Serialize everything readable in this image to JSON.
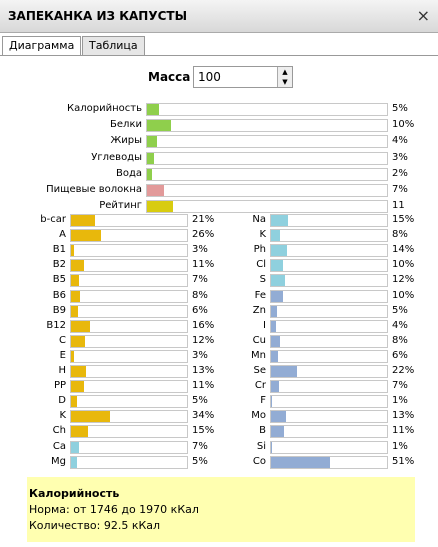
{
  "header": {
    "title": "ЗАПЕКАНКА ИЗ КАПУСТЫ",
    "close": "×"
  },
  "tabs": [
    "Диаграмма",
    "Таблица"
  ],
  "mass": {
    "label": "Масса",
    "value": 100
  },
  "main": [
    {
      "label": "Калорийность",
      "value": 5,
      "value_label": "5%",
      "color": "#8fcf4c"
    },
    {
      "label": "Белки",
      "value": 10,
      "value_label": "10%",
      "color": "#8fcf4c"
    },
    {
      "label": "Жиры",
      "value": 4,
      "value_label": "4%",
      "color": "#8fcf4c"
    },
    {
      "label": "Углеводы",
      "value": 3,
      "value_label": "3%",
      "color": "#8fcf4c"
    },
    {
      "label": "Вода",
      "value": 2,
      "value_label": "2%",
      "color": "#8fcf4c"
    },
    {
      "label": "Пищевые волокна",
      "value": 7,
      "value_label": "7%",
      "color": "#e29a9a"
    },
    {
      "label": "Рейтинг",
      "value": 11,
      "color": "#d8cc10"
    }
  ],
  "vitamins": [
    {
      "label": "b-car",
      "value": 21,
      "value_label": "21%",
      "color": "#e8b80c"
    },
    {
      "label": "A",
      "value": 26,
      "value_label": "26%",
      "color": "#e8b80c"
    },
    {
      "label": "B1",
      "value": 3,
      "value_label": "3%",
      "color": "#e8b80c"
    },
    {
      "label": "B2",
      "value": 11,
      "value_label": "11%",
      "color": "#e8b80c"
    },
    {
      "label": "B5",
      "value": 7,
      "value_label": "7%",
      "color": "#e8b80c"
    },
    {
      "label": "B6",
      "value": 8,
      "value_label": "8%",
      "color": "#e8b80c"
    },
    {
      "label": "B9",
      "value": 6,
      "value_label": "6%",
      "color": "#e8b80c"
    },
    {
      "label": "B12",
      "value": 16,
      "value_label": "16%",
      "color": "#e8b80c"
    },
    {
      "label": "C",
      "value": 12,
      "value_label": "12%",
      "color": "#e8b80c"
    },
    {
      "label": "E",
      "value": 3,
      "value_label": "3%",
      "color": "#e8b80c"
    },
    {
      "label": "H",
      "value": 13,
      "value_label": "13%",
      "color": "#e8b80c"
    },
    {
      "label": "PP",
      "value": 11,
      "value_label": "11%",
      "color": "#e8b80c"
    },
    {
      "label": "D",
      "value": 5,
      "value_label": "5%",
      "color": "#e8b80c"
    },
    {
      "label": "K",
      "value": 34,
      "value_label": "34%",
      "color": "#e8b80c"
    },
    {
      "label": "Ch",
      "value": 15,
      "value_label": "15%",
      "color": "#e8b80c"
    },
    {
      "label": "Ca",
      "value": 7,
      "value_label": "7%",
      "color": "#8fd0de"
    },
    {
      "label": "Mg",
      "value": 5,
      "value_label": "5%",
      "color": "#8fd0de"
    }
  ],
  "minerals": [
    {
      "label": "Na",
      "value": 15,
      "value_label": "15%",
      "color": "#8fd0de"
    },
    {
      "label": "K",
      "value": 8,
      "value_label": "8%",
      "color": "#8fd0de"
    },
    {
      "label": "Ph",
      "value": 14,
      "value_label": "14%",
      "color": "#8fd0de"
    },
    {
      "label": "Cl",
      "value": 10,
      "value_label": "10%",
      "color": "#8fd0de"
    },
    {
      "label": "S",
      "value": 12,
      "value_label": "12%",
      "color": "#8fd0de"
    },
    {
      "label": "Fe",
      "value": 10,
      "value_label": "10%",
      "color": "#92acd4"
    },
    {
      "label": "Zn",
      "value": 5,
      "value_label": "5%",
      "color": "#92acd4"
    },
    {
      "label": "I",
      "value": 4,
      "value_label": "4%",
      "color": "#92acd4"
    },
    {
      "label": "Cu",
      "value": 8,
      "value_label": "8%",
      "color": "#92acd4"
    },
    {
      "label": "Mn",
      "value": 6,
      "value_label": "6%",
      "color": "#92acd4"
    },
    {
      "label": "Se",
      "value": 22,
      "value_label": "22%",
      "color": "#92acd4"
    },
    {
      "label": "Cr",
      "value": 7,
      "value_label": "7%",
      "color": "#92acd4"
    },
    {
      "label": "F",
      "value": 1,
      "value_label": "1%",
      "color": "#92acd4"
    },
    {
      "label": "Mo",
      "value": 13,
      "value_label": "13%",
      "color": "#92acd4"
    },
    {
      "label": "B",
      "value": 11,
      "value_label": "11%",
      "color": "#92acd4"
    },
    {
      "label": "Si",
      "value": 1,
      "value_label": "1%",
      "color": "#92acd4"
    },
    {
      "label": "Co",
      "value": 51,
      "value_label": "51%",
      "color": "#92acd4"
    }
  ],
  "info": {
    "title": "Калорийность",
    "norm": "Норма: от 1746 до 1970 кКал",
    "amount": "Количество: 92.5 кКал"
  }
}
